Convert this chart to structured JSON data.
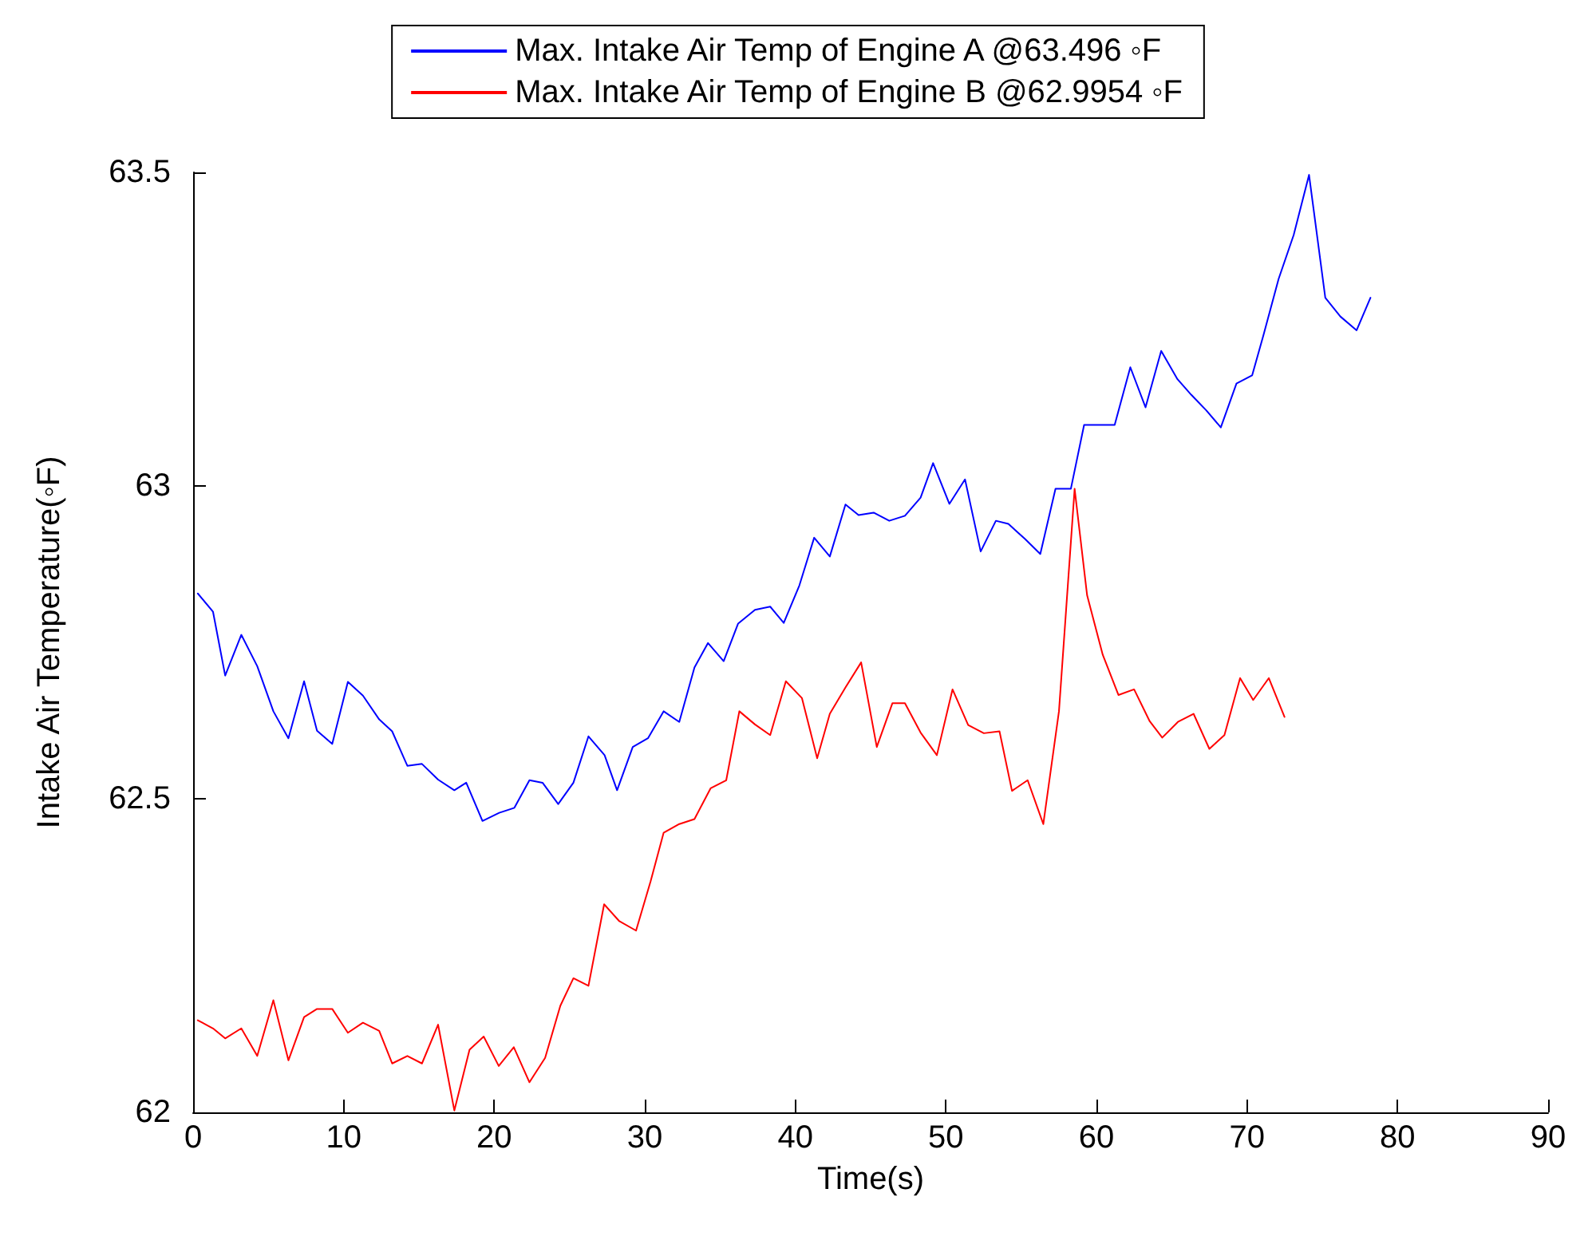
{
  "chart_data": {
    "type": "line",
    "xlabel": "Time(s)",
    "ylabel": "Intake Air Temperature(◦F)",
    "xlim": [
      0,
      90
    ],
    "xticks": [
      0,
      10,
      20,
      30,
      40,
      50,
      60,
      70,
      80,
      90
    ],
    "ylim": [
      62,
      63.5
    ],
    "yticks": [
      62,
      62.5,
      63,
      63.5
    ],
    "grid": false,
    "legend": "top",
    "marker": "none",
    "line_style": "solid",
    "series": [
      {
        "name": "Max. Intake Air Temp of Engine A @63.496 ◦F",
        "color": "#0000ff",
        "x": [
          0.31,
          1.32,
          2.13,
          3.2,
          4.26,
          5.33,
          6.33,
          7.37,
          8.23,
          9.24,
          10.28,
          11.28,
          12.36,
          13.22,
          14.23,
          15.2,
          16.27,
          17.35,
          18.14,
          19.22,
          20.33,
          21.34,
          22.34,
          23.21,
          24.25,
          25.26,
          26.26,
          27.33,
          28.16,
          29.2,
          30.21,
          31.25,
          32.29,
          33.3,
          34.2,
          35.24,
          36.2,
          37.32,
          38.33,
          39.23,
          40.27,
          41.25,
          42.29,
          43.33,
          44.2,
          45.2,
          46.24,
          47.28,
          48.32,
          49.15,
          50.23,
          51.27,
          52.31,
          53.32,
          54.15,
          55.26,
          56.27,
          57.28,
          58.3,
          59.18,
          60.2,
          61.21,
          62.25,
          63.26,
          64.3,
          65.38,
          66.3,
          67.3,
          68.26,
          69.3,
          70.34,
          71.1,
          72.1,
          73.1,
          74.12,
          75.2,
          76.2,
          77.28,
          78.2
        ],
        "values": [
          62.828,
          62.799,
          62.697,
          62.762,
          62.712,
          62.64,
          62.597,
          62.688,
          62.609,
          62.588,
          62.687,
          62.665,
          62.627,
          62.608,
          62.553,
          62.556,
          62.531,
          62.514,
          62.526,
          62.465,
          62.478,
          62.486,
          62.53,
          62.526,
          62.492,
          62.526,
          62.6,
          62.57,
          62.514,
          62.583,
          62.597,
          62.64,
          62.623,
          62.71,
          62.749,
          62.72,
          62.78,
          62.802,
          62.807,
          62.781,
          62.841,
          62.917,
          62.887,
          62.97,
          62.953,
          62.957,
          62.944,
          62.952,
          62.981,
          63.036,
          62.971,
          63.01,
          62.895,
          62.944,
          62.939,
          62.915,
          62.891,
          62.995,
          62.995,
          63.097,
          63.097,
          63.097,
          63.189,
          63.125,
          63.215,
          63.17,
          63.145,
          63.12,
          63.093,
          63.163,
          63.176,
          63.241,
          63.33,
          63.4,
          63.496,
          63.3,
          63.27,
          63.248,
          63.3
        ]
      },
      {
        "name": "Max. Intake Air Temp of Engine B @62.9954 ◦F",
        "color": "#ff0000",
        "x": [
          0.31,
          1.32,
          2.13,
          3.2,
          4.26,
          5.33,
          6.33,
          7.37,
          8.23,
          9.24,
          10.28,
          11.28,
          12.36,
          13.22,
          14.23,
          15.2,
          16.27,
          17.35,
          18.36,
          19.3,
          20.3,
          21.3,
          22.34,
          23.38,
          24.39,
          25.26,
          26.26,
          27.3,
          28.31,
          29.42,
          30.39,
          31.25,
          32.29,
          33.3,
          34.37,
          35.41,
          36.28,
          37.32,
          38.33,
          39.37,
          40.44,
          41.45,
          42.29,
          43.33,
          44.37,
          45.41,
          46.45,
          47.28,
          48.32,
          49.4,
          50.44,
          51.48,
          52.52,
          53.56,
          54.39,
          55.43,
          56.47,
          57.51,
          58.55,
          59.38,
          60.42,
          61.46,
          62.5,
          63.54,
          64.37,
          65.41,
          66.45,
          67.5,
          68.5,
          69.54,
          70.41,
          71.45,
          72.49
        ],
        "values": [
          62.147,
          62.134,
          62.118,
          62.134,
          62.09,
          62.179,
          62.083,
          62.152,
          62.165,
          62.165,
          62.127,
          62.143,
          62.13,
          62.078,
          62.09,
          62.078,
          62.14,
          62.003,
          62.1,
          62.121,
          62.074,
          62.104,
          62.048,
          62.087,
          62.17,
          62.214,
          62.202,
          62.332,
          62.305,
          62.29,
          62.369,
          62.446,
          62.46,
          62.468,
          62.517,
          62.53,
          62.64,
          62.619,
          62.602,
          62.688,
          62.661,
          62.565,
          62.636,
          62.678,
          62.718,
          62.583,
          62.653,
          62.653,
          62.606,
          62.57,
          62.675,
          62.618,
          62.605,
          62.608,
          62.513,
          62.53,
          62.46,
          62.64,
          62.995,
          62.825,
          62.73,
          62.666,
          62.675,
          62.624,
          62.598,
          62.623,
          62.636,
          62.58,
          62.602,
          62.693,
          62.658,
          62.693,
          62.631
        ]
      }
    ]
  }
}
